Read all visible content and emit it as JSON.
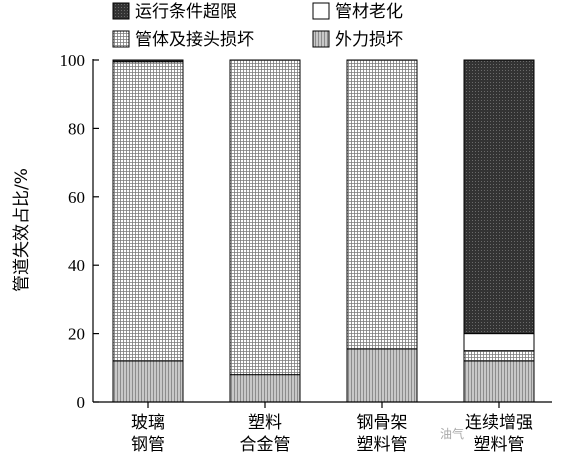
{
  "chart_data": {
    "type": "bar",
    "stacked": true,
    "title": "",
    "xlabel": "",
    "ylabel": "管道失效占比/%",
    "ylim": [
      0,
      100
    ],
    "yticks": [
      0,
      20,
      40,
      60,
      80,
      100
    ],
    "categories": [
      {
        "line1": "玻璃",
        "line2": "钢管"
      },
      {
        "line1": "塑料",
        "line2": "合金管"
      },
      {
        "line1": "钢骨架",
        "line2": "塑料管"
      },
      {
        "line1": "连续增强",
        "line2": "塑料管"
      }
    ],
    "series": [
      {
        "name": "外力损坏",
        "pattern": "vertical-lines",
        "values": [
          12,
          8,
          15.5,
          12
        ]
      },
      {
        "name": "管体及接头损坏",
        "pattern": "grid",
        "values": [
          87.5,
          92,
          84.5,
          3
        ]
      },
      {
        "name": "管材老化",
        "pattern": "white",
        "values": [
          0,
          0,
          0,
          5
        ]
      },
      {
        "name": "运行条件超限",
        "pattern": "dark-dots",
        "values": [
          0.5,
          0,
          0,
          80
        ]
      }
    ],
    "legend": {
      "placement": "top",
      "rows": [
        [
          "运行条件超限",
          "管材老化"
        ],
        [
          "管体及接头损坏",
          "外力损坏"
        ]
      ]
    },
    "grid": false
  },
  "watermark": "油气"
}
